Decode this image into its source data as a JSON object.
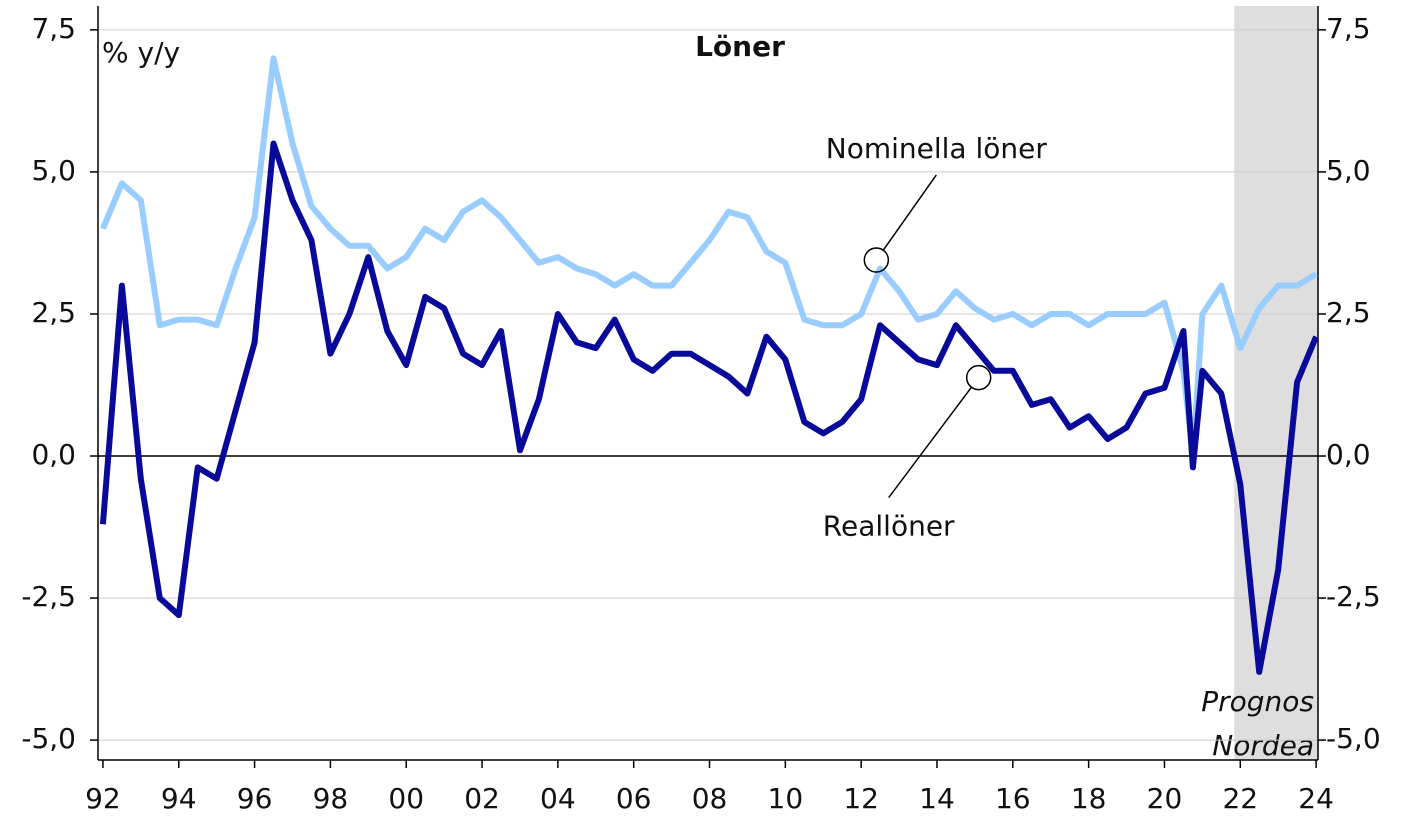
{
  "chart_data": {
    "type": "line",
    "title": "Löner",
    "y_label": "% y/y",
    "x": [
      1992.0,
      1992.5,
      1993.0,
      1993.5,
      1994.0,
      1994.5,
      1995.0,
      1995.5,
      1996.0,
      1996.5,
      1997.0,
      1997.5,
      1998.0,
      1998.5,
      1999.0,
      1999.5,
      2000.0,
      2000.5,
      2001.0,
      2001.5,
      2002.0,
      2002.5,
      2003.0,
      2003.5,
      2004.0,
      2004.5,
      2005.0,
      2005.5,
      2006.0,
      2006.5,
      2007.0,
      2007.5,
      2008.0,
      2008.5,
      2009.0,
      2009.5,
      2010.0,
      2010.5,
      2011.0,
      2011.5,
      2012.0,
      2012.5,
      2013.0,
      2013.5,
      2014.0,
      2014.5,
      2015.0,
      2015.5,
      2016.0,
      2016.5,
      2017.0,
      2017.5,
      2018.0,
      2018.5,
      2019.0,
      2019.5,
      2020.0,
      2020.5,
      2020.75,
      2021.0,
      2021.5,
      2022.0,
      2022.5,
      2023.0,
      2023.5,
      2024.0
    ],
    "series": [
      {
        "name": "Nominella löner",
        "color": "#99ccff",
        "values": [
          4.0,
          4.8,
          4.5,
          2.3,
          2.4,
          2.4,
          2.3,
          3.3,
          4.2,
          7.0,
          5.5,
          4.4,
          4.0,
          3.7,
          3.7,
          3.3,
          3.5,
          4.0,
          3.8,
          4.3,
          4.5,
          4.2,
          3.8,
          3.4,
          3.5,
          3.3,
          3.2,
          3.0,
          3.2,
          3.0,
          3.0,
          3.4,
          3.8,
          4.3,
          4.2,
          3.6,
          3.4,
          2.4,
          2.3,
          2.3,
          2.5,
          3.3,
          2.9,
          2.4,
          2.5,
          2.9,
          2.6,
          2.4,
          2.5,
          2.3,
          2.5,
          2.5,
          2.3,
          2.5,
          2.5,
          2.5,
          2.7,
          1.5,
          0.0,
          2.5,
          3.0,
          1.9,
          2.6,
          3.0,
          3.0,
          3.2
        ]
      },
      {
        "name": "Reallöner",
        "color": "#0a0a9a",
        "values": [
          -1.2,
          3.0,
          -0.4,
          -2.5,
          -2.8,
          -0.2,
          -0.4,
          0.8,
          2.0,
          5.5,
          4.5,
          3.8,
          1.8,
          2.5,
          3.5,
          2.2,
          1.6,
          2.8,
          2.6,
          1.8,
          1.6,
          2.2,
          0.1,
          1.0,
          2.5,
          2.0,
          1.9,
          2.4,
          1.7,
          1.5,
          1.8,
          1.8,
          1.6,
          1.4,
          1.1,
          2.1,
          1.7,
          0.6,
          0.4,
          0.6,
          1.0,
          2.3,
          2.0,
          1.7,
          1.6,
          2.3,
          1.9,
          1.5,
          1.5,
          0.9,
          1.0,
          0.5,
          0.7,
          0.3,
          0.5,
          1.1,
          1.2,
          2.2,
          -0.2,
          1.5,
          1.1,
          -0.5,
          -3.8,
          -2.0,
          1.3,
          2.1
        ]
      }
    ],
    "xlim": [
      1991.87,
      2024.05
    ],
    "xticks": [
      {
        "value": 1992,
        "label": "92"
      },
      {
        "value": 1994,
        "label": "94"
      },
      {
        "value": 1996,
        "label": "96"
      },
      {
        "value": 1998,
        "label": "98"
      },
      {
        "value": 2000,
        "label": "00"
      },
      {
        "value": 2002,
        "label": "02"
      },
      {
        "value": 2004,
        "label": "04"
      },
      {
        "value": 2006,
        "label": "06"
      },
      {
        "value": 2008,
        "label": "08"
      },
      {
        "value": 2010,
        "label": "10"
      },
      {
        "value": 2012,
        "label": "12"
      },
      {
        "value": 2014,
        "label": "14"
      },
      {
        "value": 2016,
        "label": "16"
      },
      {
        "value": 2018,
        "label": "18"
      },
      {
        "value": 2020,
        "label": "20"
      },
      {
        "value": 2022,
        "label": "22"
      },
      {
        "value": 2024,
        "label": "24"
      }
    ],
    "ylim": [
      -5.35,
      7.92
    ],
    "yticks": [
      {
        "value": -5,
        "label": "-5,0"
      },
      {
        "value": -2.5,
        "label": "-2,5"
      },
      {
        "value": 0,
        "label": "0,0"
      },
      {
        "value": 2.5,
        "label": "2,5"
      },
      {
        "value": 5,
        "label": "5,0"
      },
      {
        "value": 7.5,
        "label": "7,5"
      }
    ],
    "y2lim": [
      -5.35,
      7.92
    ],
    "y2ticks": [
      {
        "value": -5,
        "label": "-5,0"
      },
      {
        "value": -2.5,
        "label": "-2,5"
      },
      {
        "value": 0,
        "label": "0,0"
      },
      {
        "value": 2.5,
        "label": "2,5"
      },
      {
        "value": 5,
        "label": "5,0"
      },
      {
        "value": 7.5,
        "label": "7,5"
      }
    ],
    "grid": true,
    "forecast_region": [
      2021.84,
      2024.05
    ],
    "forecast_label": [
      "Prognos",
      "Nordea"
    ],
    "annotations": [
      {
        "text": "Nominella löner",
        "x": 2012.4,
        "y": 3.45
      },
      {
        "text": "Reallöner",
        "x": 2015.1,
        "y": 1.38
      }
    ]
  }
}
